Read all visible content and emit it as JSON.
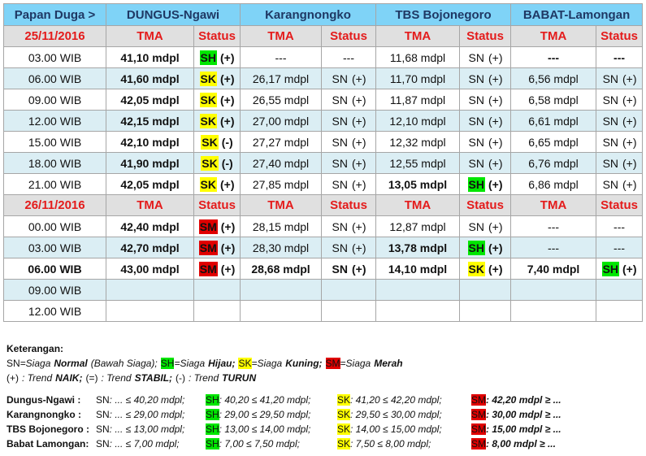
{
  "status_colors": {
    "SH": "#00e600",
    "SK": "#ffff00",
    "SM": "#e00000"
  },
  "table": {
    "header": [
      "Papan Duga >",
      "DUNGUS-Ngawi",
      "Karangnongko",
      "TBS Bojonegoro",
      "BABAT-Lamongan"
    ],
    "days": [
      {
        "date": "25/11/2016",
        "labels": [
          "TMA",
          "Status"
        ],
        "rows": [
          {
            "time": "03.00 WIB",
            "cells": [
              {
                "text": "41,10 mdpl",
                "bold": true
              },
              {
                "code": "SH",
                "trend": "(+)",
                "bold": true
              },
              "---",
              "---",
              "11,68 mdpl",
              {
                "code": "SN",
                "trend": "(+)"
              },
              {
                "text": "---",
                "bold": true
              },
              {
                "text": "---",
                "bold": true
              }
            ]
          },
          {
            "time": "06.00 WIB",
            "cells": [
              {
                "text": "41,60 mdpl",
                "bold": true
              },
              {
                "code": "SK",
                "trend": "(+)",
                "bold": true
              },
              "26,17 mdpl",
              {
                "code": "SN",
                "trend": "(+)"
              },
              "11,70 mdpl",
              {
                "code": "SN",
                "trend": "(+)"
              },
              "6,56 mdpl",
              {
                "code": "SN",
                "trend": "(+)"
              }
            ]
          },
          {
            "time": "09.00 WIB",
            "cells": [
              {
                "text": "42,05 mdpl",
                "bold": true
              },
              {
                "code": "SK",
                "trend": "(+)",
                "bold": true
              },
              "26,55 mdpl",
              {
                "code": "SN",
                "trend": "(+)"
              },
              "11,87 mdpl",
              {
                "code": "SN",
                "trend": "(+)"
              },
              "6,58 mdpl",
              {
                "code": "SN",
                "trend": "(+)"
              }
            ]
          },
          {
            "time": "12.00 WIB",
            "cells": [
              {
                "text": "42,15 mdpl",
                "bold": true
              },
              {
                "code": "SK",
                "trend": "(+)",
                "bold": true
              },
              "27,00 mdpl",
              {
                "code": "SN",
                "trend": "(+)"
              },
              "12,10 mdpl",
              {
                "code": "SN",
                "trend": "(+)"
              },
              "6,61 mdpl",
              {
                "code": "SN",
                "trend": "(+)"
              }
            ]
          },
          {
            "time": "15.00 WIB",
            "cells": [
              {
                "text": "42,10 mdpl",
                "bold": true
              },
              {
                "code": "SK",
                "trend": "(-)",
                "bold": true
              },
              "27,27 mdpl",
              {
                "code": "SN",
                "trend": "(+)"
              },
              "12,32 mdpl",
              {
                "code": "SN",
                "trend": "(+)"
              },
              "6,65 mdpl",
              {
                "code": "SN",
                "trend": "(+)"
              }
            ]
          },
          {
            "time": "18.00 WIB",
            "cells": [
              {
                "text": "41,90 mdpl",
                "bold": true
              },
              {
                "code": "SK",
                "trend": "(-)",
                "bold": true
              },
              "27,40 mdpl",
              {
                "code": "SN",
                "trend": "(+)"
              },
              "12,55 mdpl",
              {
                "code": "SN",
                "trend": "(+)"
              },
              "6,76 mdpl",
              {
                "code": "SN",
                "trend": "(+)"
              }
            ]
          },
          {
            "time": "21.00 WIB",
            "cells": [
              {
                "text": "42,05 mdpl",
                "bold": true
              },
              {
                "code": "SK",
                "trend": "(+)",
                "bold": true
              },
              "27,85 mdpl",
              {
                "code": "SN",
                "trend": "(+)"
              },
              {
                "text": "13,05 mdpl",
                "bold": true
              },
              {
                "code": "SH",
                "trend": "(+)",
                "bold": true
              },
              "6,86 mdpl",
              {
                "code": "SN",
                "trend": "(+)"
              }
            ]
          }
        ]
      },
      {
        "date": "26/11/2016",
        "labels": [
          "TMA",
          "Status"
        ],
        "rows": [
          {
            "time": "00.00 WIB",
            "cells": [
              {
                "text": "42,40 mdpl",
                "bold": true
              },
              {
                "code": "SM",
                "trend": "(+)",
                "bold": true
              },
              "28,15 mdpl",
              {
                "code": "SN",
                "trend": "(+)"
              },
              "12,87 mdpl",
              {
                "code": "SN",
                "trend": "(+)"
              },
              "---",
              "---"
            ]
          },
          {
            "time": "03.00 WIB",
            "cells": [
              {
                "text": "42,70 mdpl",
                "bold": true
              },
              {
                "code": "SM",
                "trend": "(+)",
                "bold": true
              },
              "28,30 mdpl",
              {
                "code": "SN",
                "trend": "(+)"
              },
              {
                "text": "13,78 mdpl",
                "bold": true
              },
              {
                "code": "SH",
                "trend": "(+)",
                "bold": true
              },
              "---",
              "---"
            ]
          },
          {
            "time": "06.00 WIB",
            "bold": true,
            "cells": [
              "43,00 mdpl",
              {
                "code": "SM",
                "trend": "(+)"
              },
              "28,68 mdpl",
              {
                "code": "SN",
                "trend": "(+)"
              },
              "14,10 mdpl",
              {
                "code": "SK",
                "trend": "(+)"
              },
              "7,40 mdpl",
              {
                "code": "SH",
                "trend": "(+)"
              }
            ]
          },
          {
            "time": "09.00 WIB"
          },
          {
            "time": "12.00 WIB"
          }
        ]
      }
    ]
  },
  "legend": {
    "title": "Keterangan:",
    "codes": [
      {
        "code": "SN",
        "label": "=Siaga",
        "emph": "Normal",
        "suffix": "(Bawah Siaga);"
      },
      {
        "code": "SH",
        "label": "=Siaga",
        "emph": "Hijau;"
      },
      {
        "code": "SK",
        "label": "=Siaga",
        "emph": "Kuning;"
      },
      {
        "code": "SM",
        "label": "=Siaga",
        "emph": "Merah"
      }
    ],
    "trends": [
      {
        "sym": "(+)",
        "label": ": Trend",
        "emph": "NAIK;"
      },
      {
        "sym": "(=)",
        "label": ": Trend",
        "emph": "STABIL;"
      },
      {
        "sym": "(-)",
        "label": ": Trend",
        "emph": "TURUN"
      }
    ],
    "thresholds": [
      {
        "station": "Dungus-Ngawi :",
        "levels": [
          {
            "code": "SN",
            "text": ": ... ≤ 40,20 mdpl;"
          },
          {
            "code": "SH",
            "text": ": 40,20 ≤ 41,20 mdpl;"
          },
          {
            "code": "SK",
            "text": ": 41,20 ≤ 42,20 mdpl;"
          },
          {
            "code": "SM",
            "text": ": 42,20 mdpl ≥ ..."
          }
        ]
      },
      {
        "station": "Karangnongko :",
        "levels": [
          {
            "code": "SN",
            "text": ": ... ≤ 29,00 mdpl;"
          },
          {
            "code": "SH",
            "text": ": 29,00 ≤ 29,50 mdpl;"
          },
          {
            "code": "SK",
            "text": ": 29,50 ≤ 30,00 mdpl;"
          },
          {
            "code": "SM",
            "text": ": 30,00 mdpl ≥ ..."
          }
        ]
      },
      {
        "station": "TBS Bojonegoro :",
        "levels": [
          {
            "code": "SN",
            "text": ": ... ≤ 13,00 mdpl;"
          },
          {
            "code": "SH",
            "text": ": 13,00 ≤ 14,00 mdpl;"
          },
          {
            "code": "SK",
            "text": ": 14,00 ≤ 15,00 mdpl;"
          },
          {
            "code": "SM",
            "text": ": 15,00 mdpl ≥ ..."
          }
        ]
      },
      {
        "station": "Babat Lamongan:",
        "levels": [
          {
            "code": "SN",
            "text": ": ... ≤ 7,00 mdpl;"
          },
          {
            "code": "SH",
            "text": ": 7,00 ≤ 7,50 mdpl;"
          },
          {
            "code": "SK",
            "text": ": 7,50 ≤ 8,00 mdpl;"
          },
          {
            "code": "SM",
            "text": ": 8,00 mdpl ≥ ..."
          }
        ]
      }
    ]
  }
}
